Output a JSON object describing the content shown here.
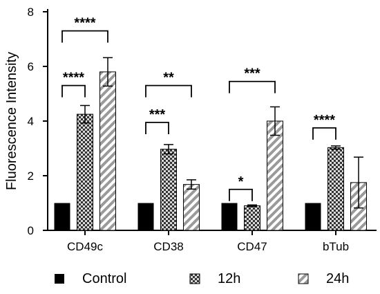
{
  "chart_data": {
    "type": "bar",
    "ylabel": "Fluorescence Intensity",
    "xlabel": "",
    "ylim": [
      0,
      8
    ],
    "yticks": [
      0,
      2,
      4,
      6,
      8
    ],
    "categories": [
      "CD49c",
      "CD38",
      "CD47",
      "bTub"
    ],
    "series": [
      {
        "name": "Control",
        "values": [
          1.0,
          1.0,
          1.0,
          1.0
        ],
        "errors": [
          0,
          0,
          0,
          0
        ],
        "pattern": "solid",
        "color": "#000000"
      },
      {
        "name": "12h",
        "values": [
          4.25,
          2.97,
          0.9,
          3.03
        ],
        "errors": [
          0.32,
          0.17,
          0.03,
          0.06
        ],
        "pattern": "checker",
        "color": "#555555"
      },
      {
        "name": "24h",
        "values": [
          5.8,
          1.68,
          4.0,
          1.75
        ],
        "errors": [
          0.52,
          0.17,
          0.52,
          0.93
        ],
        "pattern": "diagonal",
        "color": "#888888"
      }
    ],
    "significance": [
      {
        "category": 0,
        "from": "Control",
        "to": "24h",
        "label": "****",
        "y": 7.3
      },
      {
        "category": 0,
        "from": "Control",
        "to": "12h",
        "label": "****",
        "y": 5.3
      },
      {
        "category": 1,
        "from": "Control",
        "to": "24h",
        "label": "**",
        "y": 5.3
      },
      {
        "category": 1,
        "from": "Control",
        "to": "12h",
        "label": "***",
        "y": 3.95
      },
      {
        "category": 2,
        "from": "Control",
        "to": "24h",
        "label": "***",
        "y": 5.45
      },
      {
        "category": 2,
        "from": "Control",
        "to": "12h",
        "label": "*",
        "y": 1.5
      },
      {
        "category": 3,
        "from": "Control",
        "to": "12h",
        "label": "****",
        "y": 3.75
      }
    ],
    "grid": false,
    "legend_position": "bottom"
  }
}
